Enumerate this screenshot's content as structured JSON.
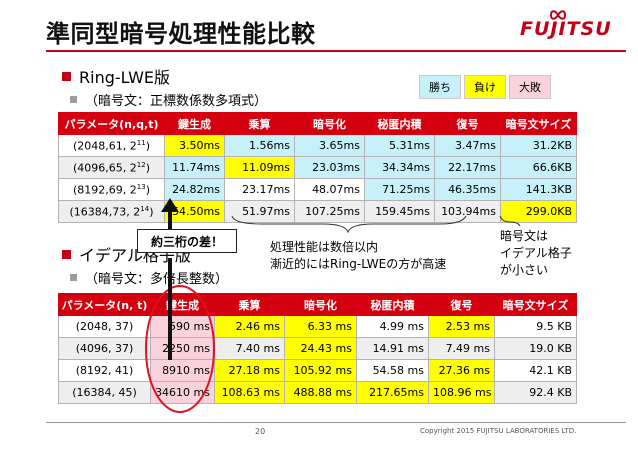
{
  "slide": {
    "title": "準同型暗号処理性能比較",
    "logo": "FUJITSU",
    "page_number": "20",
    "copyright": "Copyright 2015 FUJITSU LABORATORIES LTD."
  },
  "legend": {
    "win": "勝ち",
    "lose": "負け",
    "big_loss": "大敗"
  },
  "section1": {
    "heading": "Ring-LWE版",
    "sub": "（暗号文：正標数係数多項式）"
  },
  "section2": {
    "heading": "イデアル格子版",
    "sub": "（暗号文：多倍長整数）"
  },
  "colors": {
    "win": "#c6f0fa",
    "lose": "#ffff00",
    "big_loss": "#f9d2dc",
    "header": "#d4000f",
    "accent": "#c40016"
  },
  "table1": {
    "headers": [
      "パラメータ(n,q,t)",
      "鍵生成",
      "乗算",
      "暗号化",
      "秘匿内積",
      "復号",
      "暗号文サイズ"
    ],
    "rows": [
      {
        "param": "(2048,61, 2",
        "exp": "11",
        "close": ")",
        "cells": [
          "3.50ms",
          "1.56ms",
          "3.65ms",
          "5.31ms",
          "3.47ms",
          "31.2KB"
        ],
        "status": [
          "lose",
          "win",
          "win",
          "win",
          "win",
          "win"
        ]
      },
      {
        "param": "(4096,65, 2",
        "exp": "12",
        "close": ")",
        "cells": [
          "11.74ms",
          "11.09ms",
          "23.03ms",
          "34.34ms",
          "22.17ms",
          "66.6KB"
        ],
        "status": [
          "win",
          "lose",
          "win",
          "win",
          "win",
          "win"
        ]
      },
      {
        "param": "(8192,69, 2",
        "exp": "13",
        "close": ")",
        "cells": [
          "24.82ms",
          "23.17ms",
          "48.07ms",
          "71.25ms",
          "46.35ms",
          "141.3KB"
        ],
        "status": [
          "win",
          "none",
          "none",
          "win",
          "win",
          "win"
        ]
      },
      {
        "param": "(16384,73, 2",
        "exp": "14",
        "close": ")",
        "cells": [
          "54.50ms",
          "51.97ms",
          "107.25ms",
          "159.45ms",
          "103.94ms",
          "299.0KB"
        ],
        "status": [
          "lose",
          "none",
          "none",
          "none",
          "none",
          "lose"
        ]
      }
    ]
  },
  "table2": {
    "headers": [
      "パラメータ(n, t)",
      "鍵生成",
      "乗算",
      "暗号化",
      "秘匿内積",
      "復号",
      "暗号文サイズ"
    ],
    "rows": [
      {
        "param": "(2048, 37)",
        "cells": [
          "590 ms",
          "2.46 ms",
          "6.33 ms",
          "4.99 ms",
          "2.53 ms",
          "9.5 KB"
        ],
        "status": [
          "big",
          "lose",
          "lose",
          "none",
          "lose",
          "none"
        ]
      },
      {
        "param": "(4096, 37)",
        "cells": [
          "2250 ms",
          "7.40 ms",
          "24.43 ms",
          "14.91 ms",
          "7.49 ms",
          "19.0 KB"
        ],
        "status": [
          "big",
          "none",
          "lose",
          "none",
          "none",
          "none"
        ]
      },
      {
        "param": "(8192, 41)",
        "cells": [
          "8910 ms",
          "27.18 ms",
          "105.92 ms",
          "54.58 ms",
          "27.36 ms",
          "42.1 KB"
        ],
        "status": [
          "big",
          "lose",
          "lose",
          "none",
          "lose",
          "none"
        ]
      },
      {
        "param": "(16384, 45)",
        "cells": [
          "34610 ms",
          "108.63 ms",
          "488.88 ms",
          "217.65ms",
          "108.96 ms",
          "92.4 KB"
        ],
        "status": [
          "big",
          "lose",
          "lose",
          "lose",
          "lose",
          "none"
        ]
      }
    ]
  },
  "annotations": {
    "callout": "約三桁の差！",
    "note1_line1": "処理性能は数倍以内",
    "note1_line2": "漸近的にはRing-LWEの方が高速",
    "note2_line1": "暗号文は",
    "note2_line2": "イデアル格子",
    "note2_line3": "が小さい"
  }
}
